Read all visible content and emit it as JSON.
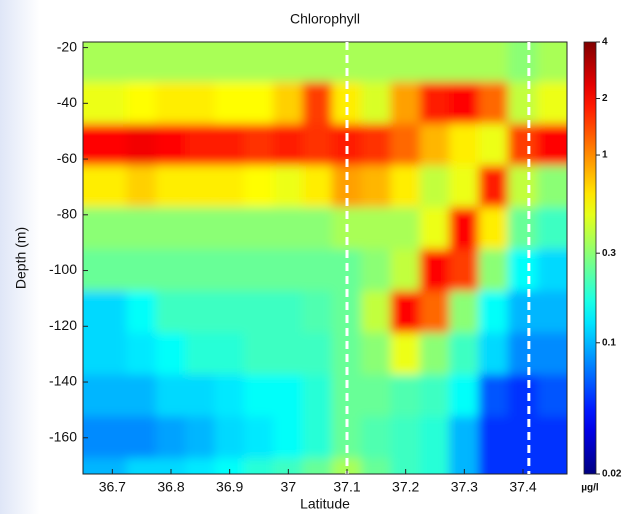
{
  "chart_data": {
    "type": "heatmap",
    "title": "Chlorophyll",
    "x_label": "Latitude",
    "y_label": "Depth (m)",
    "x": [
      36.7,
      36.75,
      36.8,
      36.85,
      36.9,
      36.95,
      37.0,
      37.05,
      37.1,
      37.15,
      37.2,
      37.25,
      37.3,
      37.35,
      37.4,
      37.45
    ],
    "y": [
      -25,
      -40,
      -55,
      -70,
      -85,
      -100,
      -115,
      -130,
      -145,
      -160,
      -175
    ],
    "z": [
      [
        0.35,
        0.35,
        0.35,
        0.35,
        0.35,
        0.35,
        0.35,
        0.35,
        0.35,
        0.35,
        0.35,
        0.35,
        0.35,
        0.35,
        0.3,
        0.35
      ],
      [
        0.5,
        0.55,
        0.6,
        0.6,
        0.55,
        0.55,
        0.7,
        1.5,
        0.6,
        0.45,
        0.9,
        1.8,
        2,
        1.2,
        0.4,
        0.5
      ],
      [
        2,
        2.2,
        2,
        1.8,
        1.8,
        1.6,
        1.8,
        1.6,
        1.8,
        1.6,
        1.2,
        0.8,
        0.6,
        0.5,
        1.5,
        2
      ],
      [
        0.6,
        0.7,
        0.6,
        0.6,
        0.6,
        0.55,
        0.5,
        0.6,
        0.9,
        0.8,
        0.6,
        0.4,
        0.5,
        1.8,
        0.4,
        0.3
      ],
      [
        0.3,
        0.3,
        0.3,
        0.3,
        0.3,
        0.3,
        0.3,
        0.3,
        0.35,
        0.35,
        0.35,
        0.5,
        2,
        0.6,
        0.25,
        0.2
      ],
      [
        0.25,
        0.25,
        0.25,
        0.25,
        0.25,
        0.25,
        0.25,
        0.25,
        0.25,
        0.3,
        0.4,
        2,
        1.5,
        0.3,
        0.15,
        0.12
      ],
      [
        0.12,
        0.15,
        0.2,
        0.2,
        0.2,
        0.2,
        0.2,
        0.22,
        0.25,
        0.4,
        2,
        1.2,
        0.3,
        0.15,
        0.1,
        0.1
      ],
      [
        0.12,
        0.13,
        0.15,
        0.18,
        0.18,
        0.2,
        0.2,
        0.2,
        0.25,
        0.3,
        0.5,
        0.3,
        0.2,
        0.12,
        0.08,
        0.08
      ],
      [
        0.1,
        0.1,
        0.12,
        0.12,
        0.13,
        0.15,
        0.15,
        0.18,
        0.25,
        0.25,
        0.22,
        0.2,
        0.15,
        0.06,
        0.05,
        0.06
      ],
      [
        0.08,
        0.08,
        0.09,
        0.1,
        0.12,
        0.13,
        0.15,
        0.18,
        0.25,
        0.22,
        0.2,
        0.18,
        0.1,
        0.05,
        0.05,
        0.05
      ],
      [
        0.1,
        0.12,
        0.12,
        0.13,
        0.15,
        0.18,
        0.2,
        0.25,
        0.35,
        0.25,
        0.2,
        0.18,
        0.1,
        0.05,
        0.05,
        0.05
      ]
    ],
    "xlim": [
      36.65,
      37.475
    ],
    "ylim": [
      -173,
      -18
    ],
    "xticks": [
      36.7,
      36.8,
      36.9,
      37,
      37.1,
      37.2,
      37.3,
      37.4
    ],
    "yticks": [
      -20,
      -40,
      -60,
      -80,
      -100,
      -120,
      -140,
      -160
    ],
    "colorscale": "jet",
    "log_color": true,
    "clim": [
      0.02,
      4
    ],
    "cticks": [
      0.02,
      0.1,
      0.3,
      1,
      2,
      4
    ],
    "colorbar_label": "µg/l",
    "vlines": [
      37.1,
      37.41
    ],
    "vline_color": "#ffffff"
  }
}
